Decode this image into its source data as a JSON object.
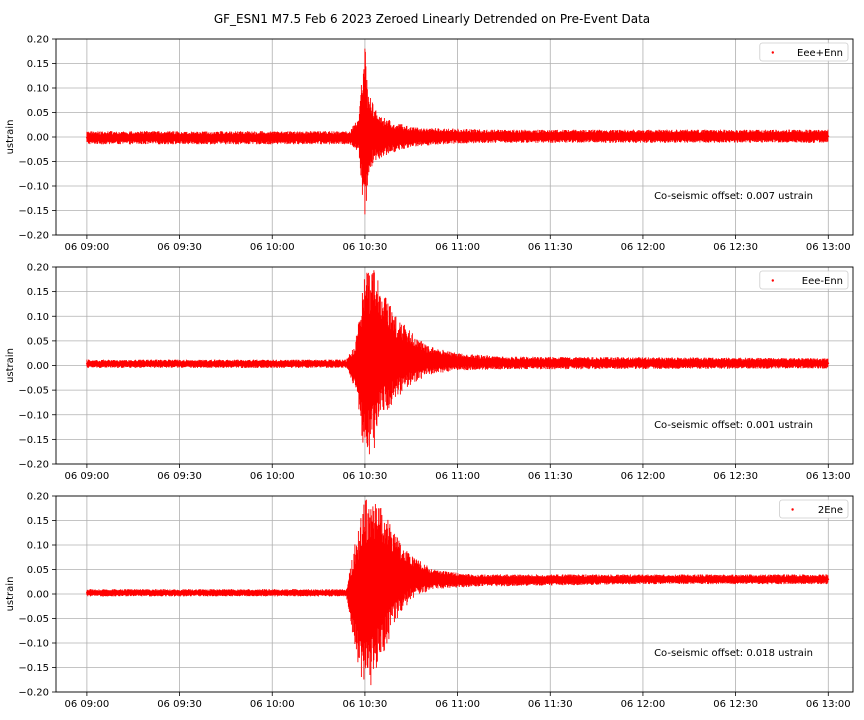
{
  "figure": {
    "title": "GF_ESN1 M7.5 Feb 6 2023 Zeroed Linearly Detrended on Pre-Event Data"
  },
  "colors": {
    "series": "#ff0000",
    "grid": "#b0b0b0",
    "axis": "#000000"
  },
  "chart_data": [
    {
      "type": "scatter",
      "title": "",
      "xlabel": "",
      "ylabel": "ustrain",
      "xlim": [
        "2023-02-06T08:50",
        "2023-02-06T13:08"
      ],
      "ylim": [
        -0.2,
        0.2
      ],
      "grid": true,
      "legend_position": "top-right",
      "x_ticks": [
        "06 09:00",
        "06 09:30",
        "06 10:00",
        "06 10:30",
        "06 11:00",
        "06 11:30",
        "06 12:00",
        "06 12:30",
        "06 13:00"
      ],
      "y_ticks": [
        "0.20",
        "0.15",
        "0.10",
        "0.05",
        "0.00",
        "−0.05",
        "−0.10",
        "−0.15",
        "−0.20"
      ],
      "annotation": "Co-seismic offset: 0.007 ustrain",
      "series": [
        {
          "name": "Eee+Enn",
          "x": [
            "2023-02-06T09:00",
            "2023-02-06T10:25",
            "2023-02-06T10:28",
            "2023-02-06T10:30",
            "2023-02-06T10:31",
            "2023-02-06T10:33",
            "2023-02-06T10:36",
            "2023-02-06T10:40",
            "2023-02-06T10:45",
            "2023-02-06T10:55",
            "2023-02-06T11:10",
            "2023-02-06T13:00"
          ],
          "y_min": [
            -0.015,
            -0.015,
            -0.03,
            -0.2,
            -0.08,
            -0.05,
            -0.04,
            -0.03,
            -0.02,
            -0.015,
            -0.012,
            -0.012
          ],
          "y_max": [
            0.012,
            0.012,
            0.04,
            0.195,
            0.1,
            0.06,
            0.04,
            0.03,
            0.02,
            0.018,
            0.015,
            0.015
          ]
        }
      ]
    },
    {
      "type": "scatter",
      "title": "",
      "xlabel": "",
      "ylabel": "ustrain",
      "xlim": [
        "2023-02-06T08:50",
        "2023-02-06T13:08"
      ],
      "ylim": [
        -0.2,
        0.2
      ],
      "grid": true,
      "legend_position": "top-right",
      "x_ticks": [
        "06 09:00",
        "06 09:30",
        "06 10:00",
        "06 10:30",
        "06 11:00",
        "06 11:30",
        "06 12:00",
        "06 12:30",
        "06 13:00"
      ],
      "y_ticks": [
        "0.20",
        "0.15",
        "0.10",
        "0.05",
        "0.00",
        "−0.05",
        "−0.10",
        "−0.15",
        "−0.20"
      ],
      "annotation": "Co-seismic offset: 0.001 ustrain",
      "series": [
        {
          "name": "Eee-Enn",
          "x": [
            "2023-02-06T09:00",
            "2023-02-06T10:24",
            "2023-02-06T10:27",
            "2023-02-06T10:30",
            "2023-02-06T10:33",
            "2023-02-06T10:36",
            "2023-02-06T10:40",
            "2023-02-06T10:45",
            "2023-02-06T10:50",
            "2023-02-06T11:00",
            "2023-02-06T11:15",
            "2023-02-06T13:00"
          ],
          "y_min": [
            -0.005,
            -0.005,
            -0.05,
            -0.2,
            -0.17,
            -0.1,
            -0.07,
            -0.04,
            -0.02,
            -0.01,
            -0.008,
            -0.006
          ],
          "y_max": [
            0.012,
            0.012,
            0.05,
            0.2,
            0.2,
            0.15,
            0.1,
            0.07,
            0.04,
            0.025,
            0.018,
            0.015
          ]
        }
      ]
    },
    {
      "type": "scatter",
      "title": "",
      "xlabel": "",
      "ylabel": "ustrain",
      "xlim": [
        "2023-02-06T08:50",
        "2023-02-06T13:08"
      ],
      "ylim": [
        -0.2,
        0.2
      ],
      "grid": true,
      "legend_position": "top-right",
      "x_ticks": [
        "06 09:00",
        "06 09:30",
        "06 10:00",
        "06 10:30",
        "06 11:00",
        "06 11:30",
        "06 12:00",
        "06 12:30",
        "06 13:00"
      ],
      "y_ticks": [
        "0.20",
        "0.15",
        "0.10",
        "0.05",
        "0.00",
        "−0.05",
        "−0.10",
        "−0.15",
        "−0.20"
      ],
      "annotation": "Co-seismic offset: 0.018 ustrain",
      "series": [
        {
          "name": "2Ene",
          "x": [
            "2023-02-06T09:00",
            "2023-02-06T10:24",
            "2023-02-06T10:27",
            "2023-02-06T10:30",
            "2023-02-06T10:33",
            "2023-02-06T10:36",
            "2023-02-06T10:40",
            "2023-02-06T10:45",
            "2023-02-06T10:52",
            "2023-02-06T11:05",
            "2023-02-06T12:00",
            "2023-02-06T13:00"
          ],
          "y_min": [
            -0.005,
            -0.005,
            -0.12,
            -0.2,
            -0.18,
            -0.12,
            -0.06,
            -0.01,
            0.01,
            0.015,
            0.02,
            0.02
          ],
          "y_max": [
            0.01,
            0.01,
            0.11,
            0.2,
            0.2,
            0.17,
            0.12,
            0.08,
            0.05,
            0.04,
            0.04,
            0.04
          ]
        }
      ]
    }
  ]
}
